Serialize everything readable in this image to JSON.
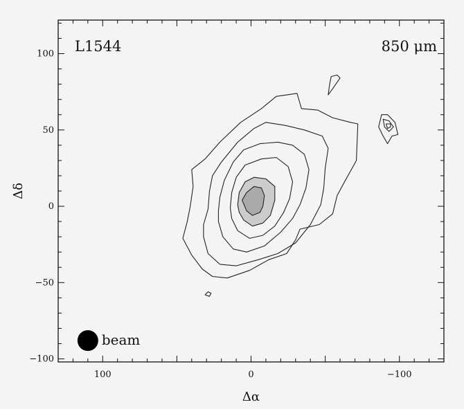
{
  "chart_data": {
    "type": "contour",
    "xlabel": "Δα",
    "ylabel": "Δδ",
    "xlim": [
      130,
      -130
    ],
    "ylim": [
      -102,
      122
    ],
    "x_ticks": [
      100,
      0,
      -100
    ],
    "x_tick_labels": [
      "100",
      "0",
      "−100"
    ],
    "y_ticks": [
      100,
      50,
      0,
      -50,
      -100
    ],
    "y_tick_labels": [
      "100",
      "50",
      "0",
      "−50",
      "−100"
    ],
    "annotations": {
      "source": "L1544",
      "wavelength": "850 μm",
      "beam_label": "beam"
    },
    "beam": {
      "center": [
        110,
        -88
      ],
      "diameter": 14
    },
    "grid": false,
    "colors": {
      "background": "#f4f4f4",
      "frame": "#111111",
      "contour": "#222222",
      "inner_fill": "#cccccc",
      "core_fill": "#aaaaaa",
      "beam": "#000000"
    },
    "contours": [
      {
        "level_index": 1,
        "fill": "none",
        "points": [
          [
            46,
            -21
          ],
          [
            43,
            -10
          ],
          [
            41,
            0
          ],
          [
            39,
            13
          ],
          [
            40,
            24
          ],
          [
            31,
            31
          ],
          [
            21,
            42
          ],
          [
            7,
            55
          ],
          [
            -7,
            64
          ],
          [
            -17,
            72
          ],
          [
            -31,
            74
          ],
          [
            -34,
            64
          ],
          [
            -45,
            63
          ],
          [
            -55,
            58
          ],
          [
            -67,
            55
          ],
          [
            -72,
            54
          ],
          [
            -71,
            30
          ],
          [
            -63,
            16
          ],
          [
            -58,
            7
          ],
          [
            -55,
            -5
          ],
          [
            -46,
            -12
          ],
          [
            -33,
            -15
          ],
          [
            -30,
            -22
          ],
          [
            -24,
            -31
          ],
          [
            -12,
            -35
          ],
          [
            1,
            -42
          ],
          [
            16,
            -47
          ],
          [
            26,
            -46
          ],
          [
            33,
            -41
          ],
          [
            40,
            -32
          ],
          [
            46,
            -21
          ]
        ]
      },
      {
        "level_index": 2,
        "fill": "none",
        "points": [
          [
            32,
            -12
          ],
          [
            29,
            -2
          ],
          [
            28,
            10
          ],
          [
            26,
            20
          ],
          [
            20,
            29
          ],
          [
            9,
            42
          ],
          [
            -2,
            51
          ],
          [
            -10,
            55
          ],
          [
            -23,
            53
          ],
          [
            -36,
            50
          ],
          [
            -48,
            46
          ],
          [
            -52,
            38
          ],
          [
            -50,
            25
          ],
          [
            -49,
            12
          ],
          [
            -47,
            1
          ],
          [
            -40,
            -12
          ],
          [
            -30,
            -24
          ],
          [
            -18,
            -31
          ],
          [
            -5,
            -35
          ],
          [
            10,
            -39
          ],
          [
            21,
            -38
          ],
          [
            29,
            -31
          ],
          [
            32,
            -20
          ],
          [
            32,
            -12
          ]
        ]
      },
      {
        "level_index": 3,
        "fill": "none",
        "points": [
          [
            22,
            -3
          ],
          [
            21,
            6
          ],
          [
            18,
            17
          ],
          [
            12,
            29
          ],
          [
            5,
            37
          ],
          [
            -6,
            41
          ],
          [
            -18,
            42
          ],
          [
            -28,
            40
          ],
          [
            -36,
            34
          ],
          [
            -39,
            24
          ],
          [
            -37,
            12
          ],
          [
            -33,
            1
          ],
          [
            -28,
            -8
          ],
          [
            -20,
            -17
          ],
          [
            -9,
            -26
          ],
          [
            3,
            -30
          ],
          [
            12,
            -28
          ],
          [
            19,
            -20
          ],
          [
            22,
            -10
          ],
          [
            22,
            -3
          ]
        ]
      },
      {
        "level_index": 4,
        "fill": "none",
        "points": [
          [
            14,
            -1
          ],
          [
            13,
            9
          ],
          [
            10,
            19
          ],
          [
            4,
            27
          ],
          [
            -7,
            31
          ],
          [
            -17,
            32
          ],
          [
            -25,
            26
          ],
          [
            -28,
            16
          ],
          [
            -26,
            5
          ],
          [
            -22,
            -4
          ],
          [
            -16,
            -13
          ],
          [
            -8,
            -19
          ],
          [
            1,
            -21
          ],
          [
            9,
            -16
          ],
          [
            13,
            -8
          ],
          [
            14,
            -1
          ]
        ]
      },
      {
        "level_index": 5,
        "fill": "#cccccc",
        "points": [
          [
            9,
            1
          ],
          [
            8,
            9
          ],
          [
            4,
            16
          ],
          [
            -2,
            19
          ],
          [
            -10,
            18
          ],
          [
            -16,
            13
          ],
          [
            -16,
            4
          ],
          [
            -13,
            -6
          ],
          [
            -8,
            -11
          ],
          [
            -1,
            -13
          ],
          [
            5,
            -9
          ],
          [
            8,
            -4
          ],
          [
            9,
            1
          ]
        ]
      },
      {
        "level_index": 6,
        "fill": "#aaaaaa",
        "points": [
          [
            6,
            4
          ],
          [
            3,
            9
          ],
          [
            -2,
            13
          ],
          [
            -7,
            12
          ],
          [
            -9,
            7
          ],
          [
            -8,
            0
          ],
          [
            -6,
            -4
          ],
          [
            -1,
            -6
          ],
          [
            3,
            -3
          ],
          [
            6,
            4
          ]
        ]
      },
      {
        "level_index": 1,
        "fill": "none",
        "points": [
          [
            -52,
            73
          ],
          [
            -55,
            77
          ],
          [
            -60,
            84
          ],
          [
            -58,
            86
          ],
          [
            -54,
            85
          ],
          [
            -53,
            80
          ],
          [
            -52,
            73
          ]
        ]
      },
      {
        "level_index": 1,
        "fill": "none",
        "points": [
          [
            -88,
            60
          ],
          [
            -92,
            60
          ],
          [
            -97,
            55
          ],
          [
            -99,
            47
          ],
          [
            -95,
            46
          ],
          [
            -92,
            41
          ],
          [
            -89,
            46
          ],
          [
            -86,
            52
          ],
          [
            -88,
            60
          ]
        ]
      },
      {
        "level_index": 2,
        "fill": "none",
        "points": [
          [
            -89,
            57
          ],
          [
            -93,
            56
          ],
          [
            -96,
            52
          ],
          [
            -93,
            49
          ],
          [
            -90,
            52
          ],
          [
            -89,
            57
          ]
        ]
      },
      {
        "level_index": 3,
        "fill": "none",
        "points": [
          [
            -91,
            54
          ],
          [
            -94,
            54
          ],
          [
            -94,
            52
          ],
          [
            -92,
            51
          ],
          [
            -91,
            54
          ]
        ]
      },
      {
        "level_index": 1,
        "fill": "none",
        "points": [
          [
            27,
            -57
          ],
          [
            28,
            -59
          ],
          [
            31,
            -58
          ],
          [
            29,
            -56
          ],
          [
            27,
            -57
          ]
        ]
      }
    ]
  }
}
